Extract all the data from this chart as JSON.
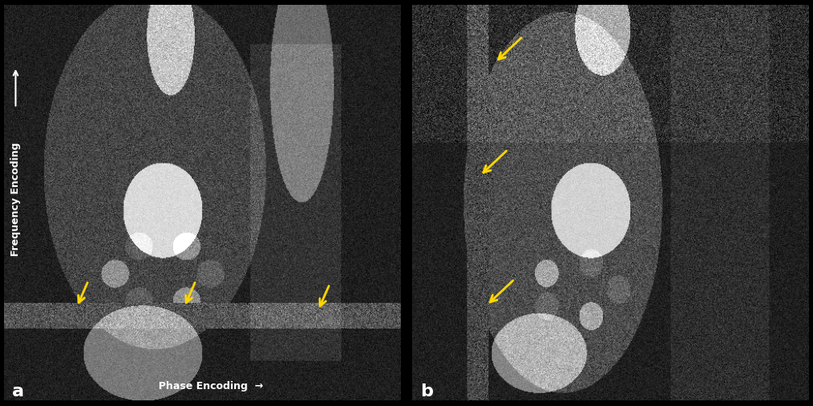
{
  "fig_width": 10.1,
  "fig_height": 5.04,
  "dpi": 100,
  "background_color": "#000000",
  "panel_a_label": "a",
  "panel_b_label": "b",
  "label_color": "#ffffff",
  "label_fontsize": 16,
  "label_fontweight": "bold",
  "freq_encoding_text": "Frequency Encoding",
  "phase_encoding_text": "Phase Encoding  →",
  "encoding_text_color": "#ffffff",
  "encoding_text_fontsize": 9,
  "encoding_text_fontweight": "bold",
  "arrow_color": "#FFD700"
}
